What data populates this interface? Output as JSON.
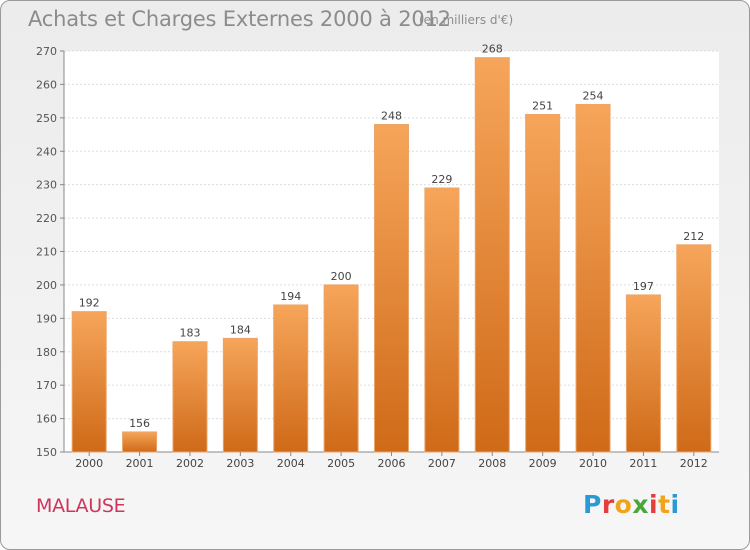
{
  "title": "Achats et Charges Externes 2000 à 2012",
  "subtitle": "(en milliers d'€)",
  "commune": "MALAUSE",
  "logo": {
    "letters": [
      "P",
      "r",
      "o",
      "x",
      "i",
      "t",
      "i"
    ],
    "colors": [
      "#2a9ad6",
      "#e53c3c",
      "#f0a41c",
      "#4aa63a",
      "#e53c3c",
      "#f0a41c",
      "#2a9ad6"
    ]
  },
  "colors": {
    "bar_top": "#f6a55a",
    "bar_bottom": "#cf6a18",
    "bar_edge": "#e9a56a"
  },
  "chart_data": {
    "type": "bar",
    "categories": [
      "2000",
      "2001",
      "2002",
      "2003",
      "2004",
      "2005",
      "2006",
      "2007",
      "2008",
      "2009",
      "2010",
      "2011",
      "2012"
    ],
    "values": [
      192,
      156,
      183,
      184,
      194,
      200,
      248,
      229,
      268,
      251,
      254,
      197,
      212
    ],
    "ylim": [
      150,
      270
    ],
    "yticks": [
      150,
      160,
      170,
      180,
      190,
      200,
      210,
      220,
      230,
      240,
      250,
      260,
      270
    ],
    "grid": true
  }
}
